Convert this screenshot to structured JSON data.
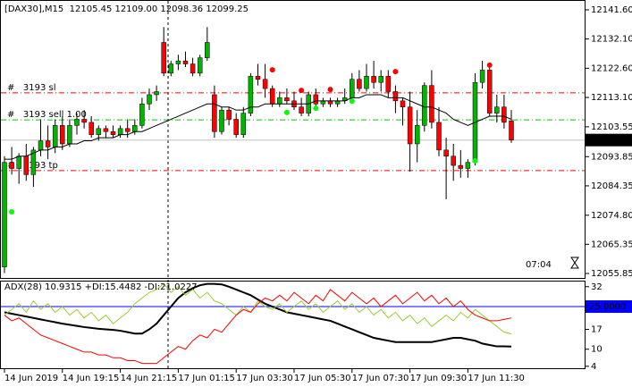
{
  "chart_data": [
    {
      "type": "candlestick",
      "title": "[DAX30],M15  12105.45 12109.00 12098.36 12099.25",
      "up_color": "#00b400",
      "down_color": "#ff0000",
      "wick_color": "#000000",
      "open": [
        12058,
        12092,
        12090,
        12094,
        12088,
        12096,
        12099,
        12097,
        12104,
        12098,
        12104,
        12106,
        12105,
        12101,
        12103,
        12102,
        12101,
        12103,
        12102,
        12104,
        12111,
        12114,
        12131,
        12121,
        12124,
        12125,
        12124,
        12121,
        12126,
        12114,
        12102,
        12109,
        12106,
        12101,
        12108,
        12120,
        12119,
        12116,
        12111,
        12113,
        12112,
        12110,
        12108,
        12114,
        12111,
        12112,
        12111,
        12112,
        12113,
        12119,
        12116,
        12120,
        12118,
        12120,
        12115,
        12112,
        12110,
        12098,
        12104,
        12117,
        12105,
        12096,
        12094,
        12091,
        12090,
        12092,
        12118,
        12122,
        12108,
        12110,
        12105.45
      ],
      "high": [
        12094,
        12097,
        12095,
        12098,
        12097,
        12106,
        12104,
        12106,
        12107,
        12106,
        12108,
        12109,
        12107,
        12104,
        12104,
        12104,
        12104,
        12106,
        12106,
        12113,
        12116,
        12117,
        12136,
        12125,
        12127,
        12128,
        12126,
        12127,
        12136,
        12117,
        12110,
        12110,
        12108,
        12110,
        12121,
        12124,
        12124,
        12117,
        12115,
        12116,
        12115,
        12113,
        12115,
        12116,
        12113,
        12113,
        12113,
        12116,
        12121,
        12122,
        12124,
        12125,
        12122,
        12122,
        12117,
        12113,
        12115,
        12109,
        12118,
        12122,
        12110,
        12100,
        12098,
        12096,
        12093,
        12121,
        12125,
        12124,
        12114,
        12114,
        12109
      ],
      "low": [
        12056,
        12088,
        12085,
        12086,
        12084,
        12094,
        12093,
        12095,
        12096,
        12097,
        12101,
        12103,
        12100,
        12099,
        12100,
        12100,
        12100,
        12100,
        12101,
        12103,
        12109,
        12112,
        12120,
        12120,
        12122,
        12123,
        12120,
        12120,
        12125,
        12100,
        12101,
        12104,
        12100,
        12100,
        12107,
        12117,
        12113,
        12110,
        12110,
        12111,
        12109,
        12107,
        12107,
        12110,
        12110,
        12110,
        12110,
        12111,
        12112,
        12115,
        12115,
        12116,
        12115,
        12113,
        12108,
        12104,
        12089,
        12092,
        12102,
        12103,
        12094,
        12080,
        12086,
        12087,
        12087,
        12091,
        12116,
        12107,
        12105,
        12103,
        12098.36
      ],
      "close": [
        12092,
        12090,
        12094,
        12088,
        12096,
        12099,
        12097,
        12104,
        12098,
        12104,
        12106,
        12105,
        12101,
        12103,
        12102,
        12101,
        12103,
        12102,
        12104,
        12111,
        12114,
        12115,
        12121,
        12124,
        12125,
        12124,
        12121,
        12126,
        12131,
        12102,
        12109,
        12106,
        12101,
        12108,
        12120,
        12119,
        12116,
        12111,
        12113,
        12112,
        12110,
        12108,
        12114,
        12111,
        12112,
        12111,
        12112,
        12113,
        12119,
        12116,
        12120,
        12118,
        12120,
        12115,
        12112,
        12110,
        12098,
        12104,
        12117,
        12105,
        12096,
        12094,
        12091,
        12090,
        12092,
        12118,
        12122,
        12108,
        12110,
        12105,
        12099.25
      ],
      "ma": {
        "color": "#000000",
        "values": [
          12093,
          12093,
          12094,
          12094,
          12095,
          12096,
          12096,
          12097,
          12097,
          12098,
          12098,
          12099,
          12099,
          12100,
          12100,
          12100,
          12101,
          12101,
          12102,
          12102,
          12103,
          12104,
          12105,
          12106,
          12107,
          12108,
          12109,
          12110,
          12111,
          12111,
          12110,
          12110,
          12109,
          12109,
          12110,
          12110,
          12111,
          12111,
          12111,
          12111,
          12111,
          12111,
          12111,
          12112,
          12112,
          12112,
          12112,
          12112,
          12113,
          12113,
          12114,
          12114,
          12114,
          12113,
          12113,
          12113,
          12112,
          12111,
          12110,
          12110,
          12109,
          12108,
          12106,
          12105,
          12104,
          12105,
          12106,
          12107,
          12107,
          12107,
          12106
        ]
      },
      "buy_signals": {
        "color": "#00ff00",
        "index": [
          1,
          39,
          43,
          48,
          65
        ],
        "price": [
          12075.9,
          12108.2,
          12109.6,
          12111.9,
          12092.5
        ]
      },
      "sell_signals": {
        "color": "#ff0000",
        "index": [
          37,
          41,
          45,
          54,
          67
        ],
        "price": [
          12122.1,
          12115.4,
          12115.7,
          12121.5,
          12123.6
        ]
      },
      "levels": [
        {
          "label": "#   3193 sl",
          "value": 12114.6,
          "color": "#ff0000"
        },
        {
          "label": "#   3193 sell 1.00",
          "value": 12105.8,
          "color": "#00c800"
        },
        {
          "label": "#   3193 tp",
          "value": 12089.3,
          "color": "#ff0000"
        }
      ],
      "last_price": 12099.25,
      "ylim": [
        12054.1,
        12144.8
      ],
      "yticks": [
        {
          "value": 12141.6,
          "label": "12141.60"
        },
        {
          "value": 12132.1,
          "label": "12132.10"
        },
        {
          "value": 12122.6,
          "label": "12122.60"
        },
        {
          "value": 12113.1,
          "label": "12113.10"
        },
        12103.55,
        12093.85,
        12084.35,
        {
          "value": 12074.8,
          "label": "12074.80"
        },
        12065.35,
        12055.85
      ],
      "timer": "07:04",
      "xlabels": [
        {
          "index": 0,
          "label": "14 Jun 2019"
        },
        {
          "index": 8,
          "label": "14 Jun 19:15"
        },
        {
          "index": 16,
          "label": "14 Jun 21:15"
        },
        {
          "index": 24,
          "label": "17 Jun 01:15"
        },
        {
          "index": 32,
          "label": "17 Jun 03:30"
        },
        {
          "index": 40,
          "label": "17 Jun 05:30"
        },
        {
          "index": 48,
          "label": "17 Jun 07:30"
        },
        {
          "index": 56,
          "label": "17 Jun 09:30"
        },
        {
          "index": 64,
          "label": "17 Jun 11:30"
        }
      ]
    },
    {
      "type": "line",
      "title": "ADX(28) 10.9315 +DI:15.4482 -DI:21.0227",
      "series": [
        {
          "color": "#000000",
          "values": [
            23,
            22.5,
            22,
            21.5,
            21,
            20.5,
            20,
            19.5,
            19,
            18.6,
            18.2,
            17.8,
            17.5,
            17.2,
            17,
            16.8,
            16.5,
            16,
            15.5,
            15.5,
            17,
            19,
            22,
            25,
            28,
            30,
            31.5,
            32.5,
            33,
            33,
            32.8,
            32,
            31,
            30,
            29,
            27.5,
            26,
            25,
            24,
            23,
            22.5,
            22,
            21.5,
            21,
            20.5,
            20,
            19,
            18,
            17,
            16,
            15,
            14,
            13.5,
            13,
            12.5,
            12.5,
            12.5,
            12.5,
            12.5,
            12.5,
            13,
            13.5,
            14,
            14,
            13.5,
            13,
            12,
            11.5,
            11,
            11,
            10.9315
          ]
        },
        {
          "color": "#9acd32",
          "values": [
            22,
            24,
            26,
            23,
            27,
            24,
            26,
            23,
            25,
            22,
            24,
            21,
            23,
            20,
            22,
            19,
            21,
            23,
            26,
            28,
            30,
            31,
            33,
            30,
            32,
            29,
            31,
            28,
            30,
            27,
            26,
            24,
            22,
            25,
            23,
            27,
            25,
            24,
            26,
            23,
            25,
            27,
            24,
            26,
            23,
            25,
            27,
            24,
            26,
            23,
            25,
            22,
            24,
            21,
            23,
            20,
            22,
            19,
            21,
            18,
            20,
            22,
            20,
            23,
            21,
            24,
            22,
            20,
            18,
            16,
            15.4482
          ]
        },
        {
          "color": "#ff0000",
          "values": [
            22,
            20,
            21,
            19,
            17,
            15,
            14,
            13,
            12,
            11,
            10,
            9,
            9,
            8,
            8,
            7,
            7,
            6,
            6,
            5,
            5,
            5,
            7,
            9,
            11,
            10,
            13,
            15,
            14,
            17,
            16,
            19,
            22,
            24,
            23,
            26,
            28,
            27,
            29,
            27,
            30,
            28,
            26,
            29,
            27,
            31,
            29,
            27,
            30,
            28,
            26,
            28,
            25,
            27,
            29,
            26,
            28,
            30,
            27,
            29,
            26,
            28,
            25,
            27,
            24,
            22,
            21,
            20,
            20,
            20.5,
            21.0227
          ]
        }
      ],
      "ylim": [
        3,
        33.5
      ],
      "yticks": [
        32,
        25,
        17,
        10,
        4
      ],
      "level": {
        "value": 25,
        "label": "25.0000",
        "color": "#0000ff"
      }
    }
  ]
}
